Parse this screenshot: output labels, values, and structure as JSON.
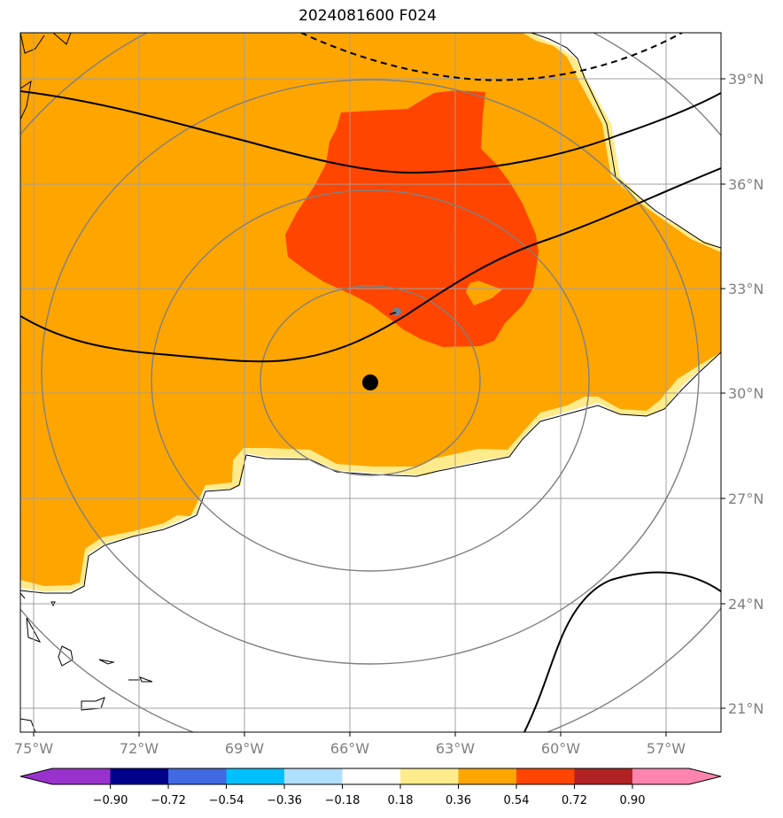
{
  "title": "2024081600 F024",
  "lon_labels": [
    "75°W",
    "72°W",
    "69°W",
    "66°W",
    "63°W",
    "60°W",
    "57°W"
  ],
  "lat_labels": [
    "39°N",
    "36°N",
    "33°N",
    "30°N",
    "27°N",
    "24°N",
    "21°N"
  ],
  "colorbar": {
    "ticks": [
      "−0.90",
      "−0.72",
      "−0.54",
      "−0.36",
      "−0.18",
      "0.18",
      "0.36",
      "0.54",
      "0.72",
      "0.90"
    ],
    "colors": [
      "#9932cc",
      "#00008b",
      "#4169e1",
      "#00bfff",
      "#b0e0ff",
      "#ffffff",
      "#ffeb8c",
      "#ffa500",
      "#ff4500",
      "#b22222",
      "#ff85b0"
    ]
  },
  "colors": {
    "fill_036_054": "#ffa500",
    "fill_054_072": "#ff4500",
    "fill_018_036": "#ffeb8c",
    "grid": "#a0a0a0",
    "range_rings": "#808080",
    "center_marker": "#000000",
    "secondary_marker": "#708090"
  }
}
